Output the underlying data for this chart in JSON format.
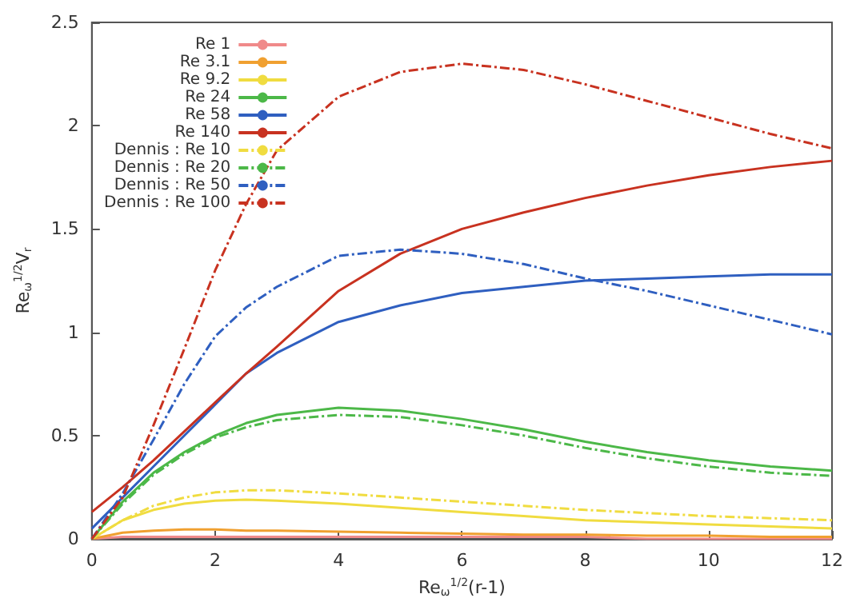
{
  "chart_data": {
    "type": "line",
    "xlabel": "Re$_{ω}$$^{1/2}$(r-1)",
    "ylabel": "Re$_{ω}$$^{1/2}$V$_{r}$",
    "x": [
      0,
      0.5,
      1,
      1.5,
      2,
      2.5,
      3,
      4,
      5,
      6,
      7,
      8,
      9,
      10,
      11,
      12
    ],
    "xlim": [
      0,
      12
    ],
    "xticks": [
      0,
      2,
      4,
      6,
      8,
      10,
      12
    ],
    "ylim": [
      0,
      2.5
    ],
    "yticks": [
      0,
      0.5,
      1,
      1.5,
      2,
      2.5
    ],
    "grid": false,
    "legend": "top left",
    "marker": "none",
    "series": [
      {
        "name": "Re 1",
        "color": "#f08a8a",
        "line_style": "solid",
        "values": [
          0,
          0.01,
          0.01,
          0.01,
          0.01,
          0.01,
          0.01,
          0.01,
          0.01,
          0.01,
          0.01,
          0.01,
          0,
          0,
          0,
          0
        ]
      },
      {
        "name": "Re 3.1",
        "color": "#f0a030",
        "line_style": "solid",
        "values": [
          0,
          0.03,
          0.04,
          0.045,
          0.045,
          0.04,
          0.04,
          0.035,
          0.03,
          0.025,
          0.02,
          0.02,
          0.015,
          0.015,
          0.01,
          0.01
        ]
      },
      {
        "name": "Re 9.2",
        "color": "#f0dc40",
        "line_style": "solid",
        "values": [
          0,
          0.09,
          0.14,
          0.17,
          0.185,
          0.19,
          0.185,
          0.17,
          0.15,
          0.13,
          0.11,
          0.09,
          0.08,
          0.07,
          0.06,
          0.05
        ]
      },
      {
        "name": "Re 24",
        "color": "#4cb848",
        "line_style": "solid",
        "values": [
          0,
          0.18,
          0.32,
          0.42,
          0.5,
          0.56,
          0.6,
          0.635,
          0.62,
          0.58,
          0.53,
          0.47,
          0.42,
          0.38,
          0.35,
          0.33
        ]
      },
      {
        "name": "Re 58",
        "color": "#2f5fc0",
        "line_style": "solid",
        "values": [
          0.05,
          0.2,
          0.35,
          0.5,
          0.65,
          0.8,
          0.9,
          1.05,
          1.13,
          1.19,
          1.22,
          1.25,
          1.26,
          1.27,
          1.28,
          1.28
        ]
      },
      {
        "name": "Re 140",
        "color": "#c83220",
        "line_style": "solid",
        "values": [
          0.13,
          0.25,
          0.38,
          0.52,
          0.66,
          0.8,
          0.93,
          1.2,
          1.38,
          1.5,
          1.58,
          1.65,
          1.71,
          1.76,
          1.8,
          1.83
        ]
      },
      {
        "name": "Dennis : Re 10",
        "color": "#f0dc40",
        "line_style": "dashed",
        "values": [
          0,
          0.09,
          0.16,
          0.2,
          0.225,
          0.235,
          0.235,
          0.22,
          0.2,
          0.18,
          0.16,
          0.14,
          0.125,
          0.11,
          0.1,
          0.09
        ]
      },
      {
        "name": "Dennis : Re 20",
        "color": "#4cb848",
        "line_style": "dashed",
        "values": [
          0,
          0.17,
          0.31,
          0.41,
          0.49,
          0.54,
          0.575,
          0.6,
          0.59,
          0.55,
          0.5,
          0.44,
          0.39,
          0.35,
          0.32,
          0.305
        ]
      },
      {
        "name": "Dennis : Re 50",
        "color": "#2f5fc0",
        "line_style": "dashed",
        "values": [
          0,
          0.22,
          0.48,
          0.75,
          0.98,
          1.12,
          1.22,
          1.37,
          1.4,
          1.38,
          1.33,
          1.26,
          1.2,
          1.13,
          1.06,
          0.99
        ]
      },
      {
        "name": "Dennis : Re 100",
        "color": "#c83220",
        "line_style": "dashed",
        "values": [
          0,
          0.2,
          0.55,
          0.92,
          1.3,
          1.62,
          1.88,
          2.14,
          2.26,
          2.3,
          2.27,
          2.2,
          2.12,
          2.04,
          1.96,
          1.89
        ]
      }
    ]
  }
}
